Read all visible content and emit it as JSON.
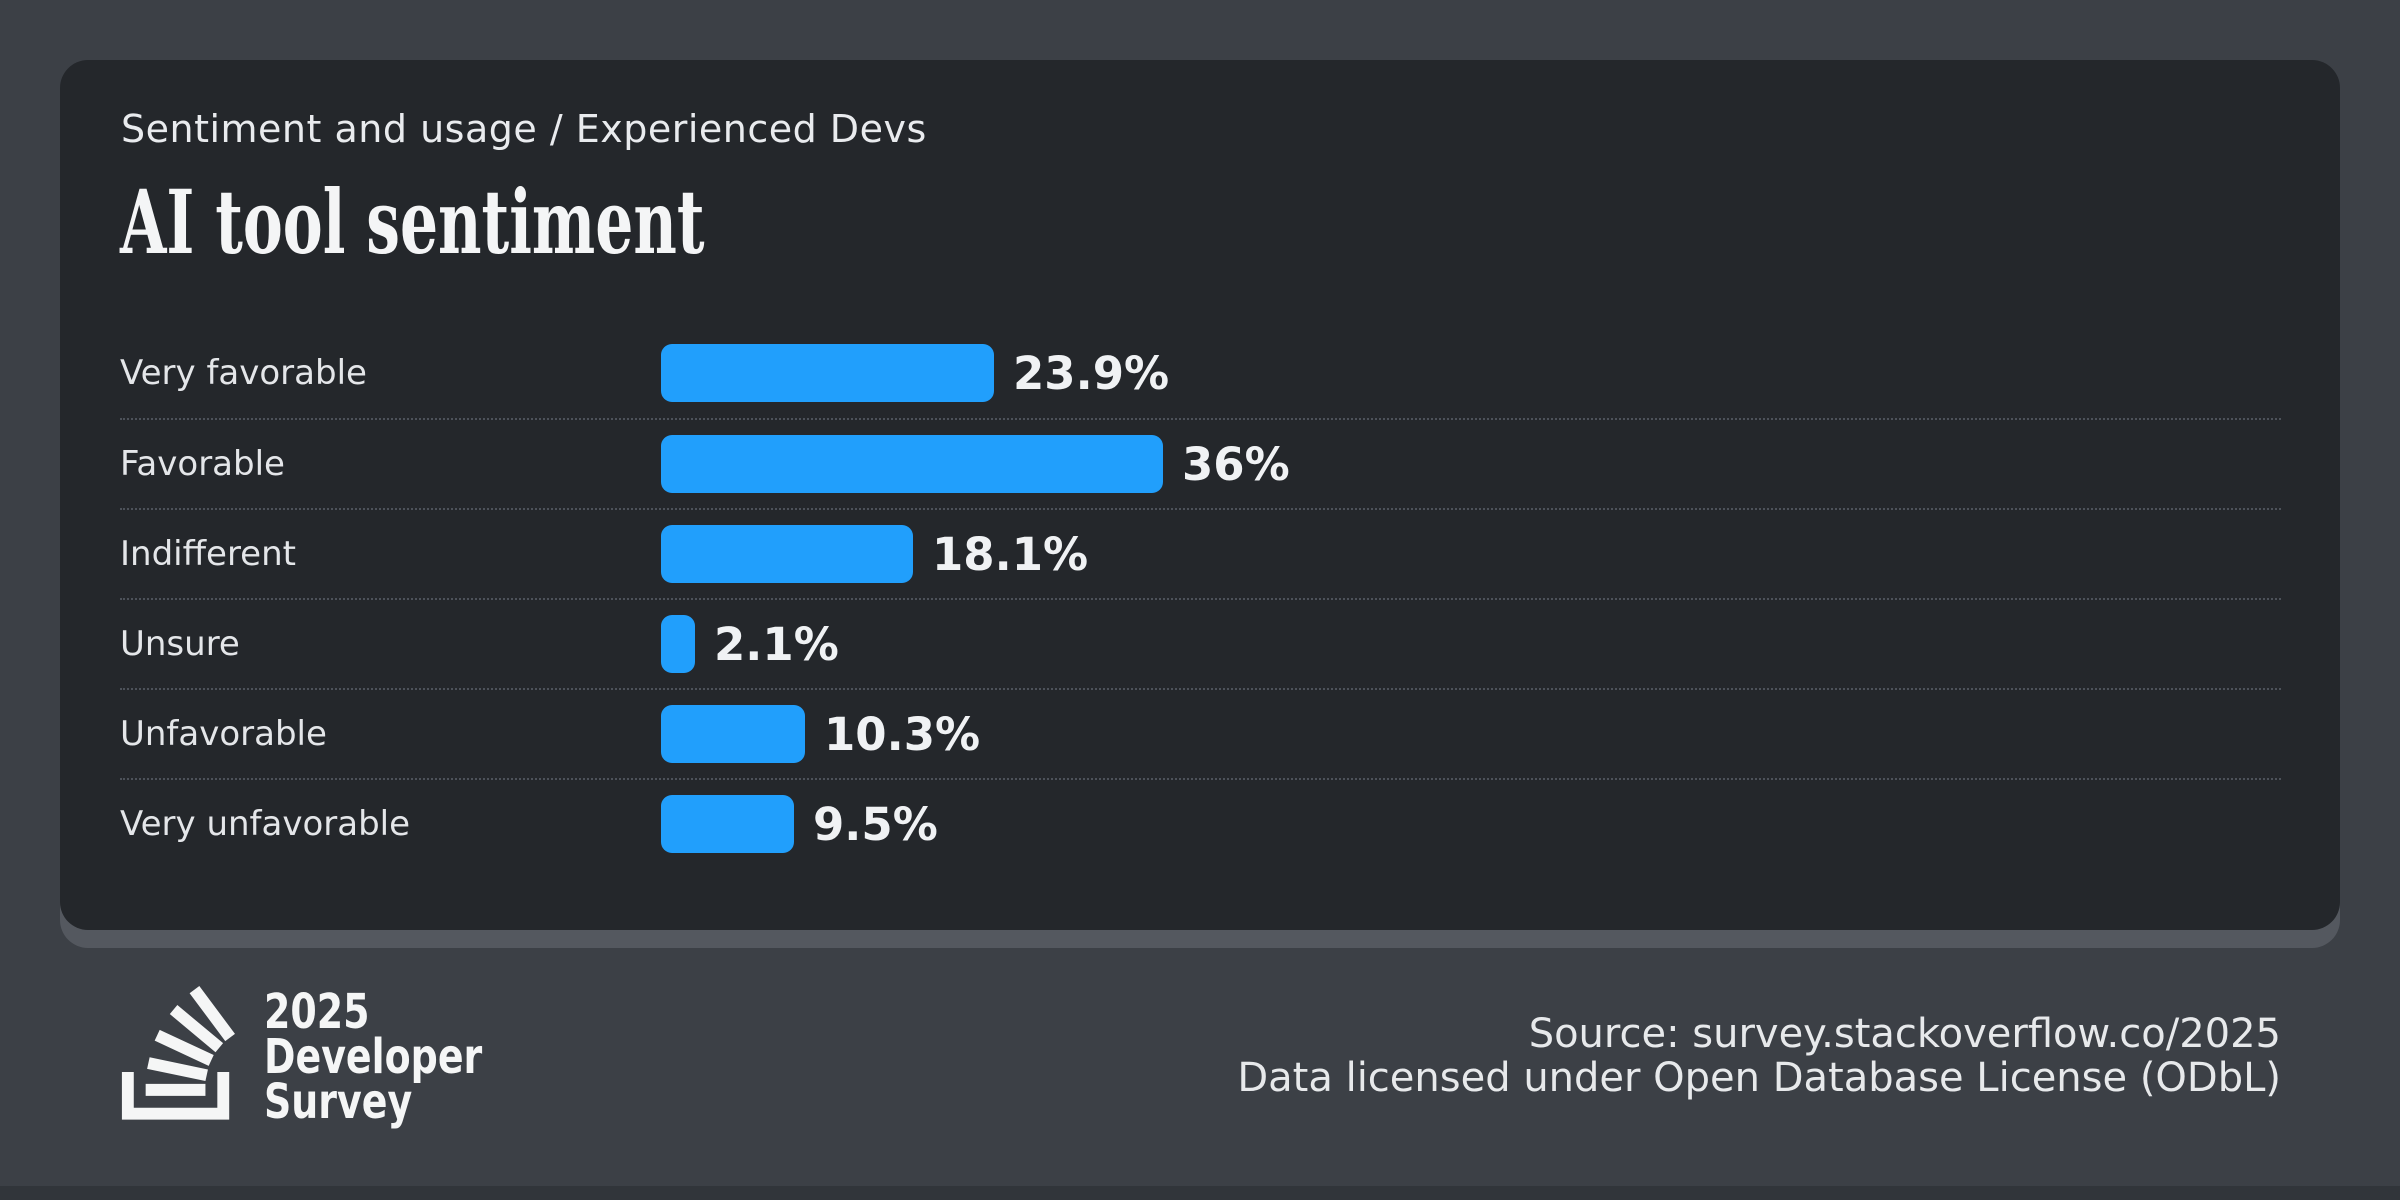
{
  "header": {
    "eyebrow": "Sentiment and usage / Experienced Devs",
    "title": "AI tool sentiment"
  },
  "chart_data": {
    "type": "bar",
    "orientation": "horizontal",
    "title": "AI tool sentiment",
    "subtitle": "Sentiment and usage / Experienced Devs",
    "categories": [
      "Very favorable",
      "Favorable",
      "Indifferent",
      "Unsure",
      "Unfavorable",
      "Very unfavorable"
    ],
    "values": [
      23.9,
      36,
      18.1,
      2.1,
      10.3,
      9.5
    ],
    "value_labels": [
      "23.9%",
      "36%",
      "18.1%",
      "2.1%",
      "10.3%",
      "9.5%"
    ],
    "unit": "%",
    "xlim": [
      0,
      100
    ],
    "grid": false,
    "legend": false,
    "bar_color": "#219ffc",
    "row_divider_style": "dotted"
  },
  "footer": {
    "logo": {
      "icon": "stackoverflow-logo-icon",
      "line1": "2025",
      "line2": "Developer",
      "line3": "Survey"
    },
    "source_line1": "Source: survey.stackoverflow.co/2025",
    "source_line2": "Data licensed under Open Database License (ODbL)"
  },
  "colors": {
    "outer_background": "#3c4046",
    "card_background": "#24272b",
    "card_shadow": "#54585f",
    "accent_blue": "#219ffc",
    "divider": "#4d525a",
    "label_text": "#e4e6e9",
    "value_text": "#f0f2f4",
    "title_text": "#f4f5f6",
    "footer_text": "#e7e9eb"
  }
}
